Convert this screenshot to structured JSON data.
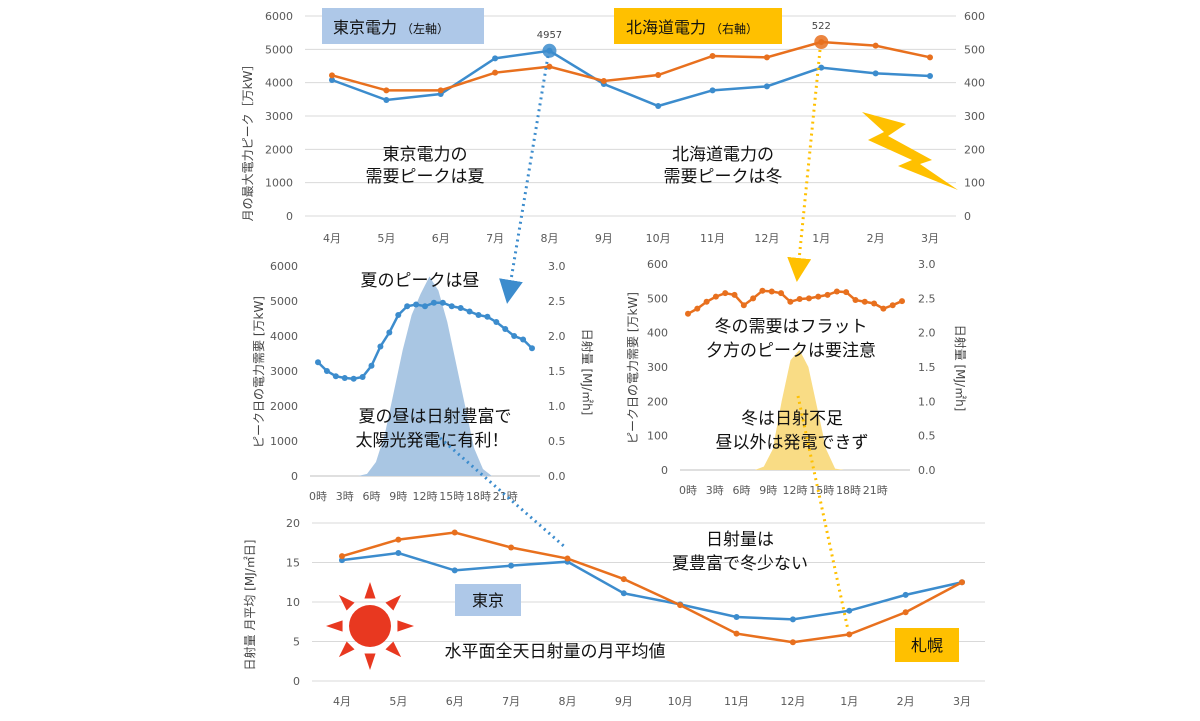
{
  "colors": {
    "tokyo": "#3c8ccd",
    "hokkaido": "#e8701e",
    "summer_sun": "#a9c6e3",
    "winter_sun": "#f9dc85",
    "tokyo_tag_bg": "#aec8e8",
    "hokkaido_tag_bg": "#ffc000",
    "sun_icon": "#e83820",
    "bolt_icon": "#ffc000",
    "arrow_blue": "#3c8ccd",
    "arrow_yellow": "#ffc000"
  },
  "icons": [
    "sun-icon",
    "lightning-icon"
  ],
  "chart_data": [
    {
      "id": "monthly_peak",
      "type": "line",
      "categories": [
        "4月",
        "5月",
        "6月",
        "7月",
        "8月",
        "9月",
        "10月",
        "11月",
        "12月",
        "1月",
        "2月",
        "3月"
      ],
      "ylabel": "月の最大電力ピーク［万kW］",
      "ylim_left": [
        0,
        6000
      ],
      "ylim_right": [
        0,
        600
      ],
      "yticks_left": [
        "0",
        "1000",
        "2000",
        "3000",
        "4000",
        "5000",
        "6000"
      ],
      "yticks_right": [
        "0",
        "100",
        "200",
        "300",
        "400",
        "500",
        "600"
      ],
      "series": [
        {
          "name": "東京電力",
          "name_note": "（左軸）",
          "axis": "left",
          "values": [
            4080,
            3480,
            3660,
            4730,
            4957,
            3960,
            3300,
            3770,
            3890,
            4450,
            4280,
            4200
          ]
        },
        {
          "name": "北海道電力",
          "name_note": "（右軸）",
          "axis": "right",
          "values": [
            422,
            377,
            377,
            430,
            448,
            405,
            423,
            480,
            476,
            522,
            511,
            476
          ]
        }
      ],
      "data_labels": [
        {
          "series": 0,
          "index": 4,
          "text": "4957"
        },
        {
          "series": 1,
          "index": 9,
          "text": "522"
        }
      ],
      "annotations": [
        "東京電力の",
        "需要ピークは夏",
        "北海道電力の",
        "需要ピークは冬"
      ]
    },
    {
      "id": "summer_day",
      "type": "line+area",
      "title": "夏のピークは昼",
      "x": [
        "0時",
        "3時",
        "6時",
        "9時",
        "12時",
        "15時",
        "18時",
        "21時"
      ],
      "ylabel": "ピーク日の電力需要 [万kW]",
      "ylabel_right": "日射量 [MJ/㎡h]",
      "ylim_left": [
        0,
        6000
      ],
      "ylim_right": [
        0,
        3.0
      ],
      "yticks_left": [
        "0",
        "1000",
        "2000",
        "3000",
        "4000",
        "5000",
        "6000"
      ],
      "yticks_right": [
        "0.0",
        "0.5",
        "1.0",
        "1.5",
        "2.0",
        "2.5",
        "3.0"
      ],
      "demand_hourly": [
        3250,
        3000,
        2850,
        2800,
        2780,
        2830,
        3150,
        3700,
        4100,
        4600,
        4850,
        4900,
        4850,
        4950,
        4950,
        4850,
        4800,
        4700,
        4600,
        4550,
        4400,
        4200,
        4000,
        3900,
        3650
      ],
      "insolation_hourly": [
        0,
        0,
        0,
        0,
        0,
        0.03,
        0.2,
        0.6,
        1.2,
        1.8,
        2.3,
        2.6,
        2.85,
        2.65,
        2.2,
        1.6,
        1.0,
        0.4,
        0.1,
        0,
        0,
        0,
        0,
        0
      ],
      "annotations": [
        "夏の昼は日射豊富で",
        "太陽光発電に有利！"
      ]
    },
    {
      "id": "winter_day",
      "type": "line+area",
      "x": [
        "0時",
        "3時",
        "6時",
        "9時",
        "12時",
        "15時",
        "18時",
        "21時"
      ],
      "ylabel": "ピーク日の電力需要 [万kW]",
      "ylabel_right": "日射量 [MJ/㎡h]",
      "ylim_left": [
        0,
        600
      ],
      "ylim_right": [
        0,
        3.0
      ],
      "yticks_left": [
        "0",
        "100",
        "200",
        "300",
        "400",
        "500",
        "600"
      ],
      "yticks_right": [
        "0.0",
        "0.5",
        "1.0",
        "1.5",
        "2.0",
        "2.5",
        "3.0"
      ],
      "demand_hourly": [
        455,
        470,
        490,
        505,
        515,
        510,
        480,
        500,
        522,
        520,
        515,
        490,
        498,
        500,
        505,
        510,
        520,
        518,
        495,
        490,
        485,
        470,
        480,
        492
      ],
      "insolation_hourly": [
        0,
        0,
        0,
        0,
        0,
        0,
        0,
        0,
        0.05,
        0.3,
        1.0,
        1.6,
        1.75,
        1.5,
        0.9,
        0.3,
        0.02,
        0,
        0,
        0,
        0,
        0,
        0,
        0
      ],
      "annotations": [
        "冬の需要はフラット",
        "夕方のピークは要注意",
        "冬は日射不足",
        "昼以外は発電できず"
      ]
    },
    {
      "id": "monthly_insolation",
      "type": "line",
      "title": "水平面全天日射量の月平均値",
      "categories": [
        "4月",
        "5月",
        "6月",
        "7月",
        "8月",
        "9月",
        "10月",
        "11月",
        "12月",
        "1月",
        "2月",
        "3月"
      ],
      "ylabel": "日射量 月平均 [MJ/㎡日]",
      "ylim": [
        0,
        20
      ],
      "yticks": [
        "0",
        "5",
        "10",
        "15",
        "20"
      ],
      "series": [
        {
          "name": "東京",
          "values": [
            15.3,
            16.2,
            14.0,
            14.6,
            15.1,
            11.1,
            9.7,
            8.1,
            7.8,
            8.9,
            10.9,
            12.5
          ]
        },
        {
          "name": "札幌",
          "values": [
            15.8,
            17.9,
            18.8,
            16.9,
            15.5,
            12.9,
            9.6,
            6.0,
            4.9,
            5.9,
            8.7,
            12.5
          ]
        }
      ],
      "annotations": [
        "日射量は",
        "夏豊富で冬少ない"
      ]
    }
  ]
}
